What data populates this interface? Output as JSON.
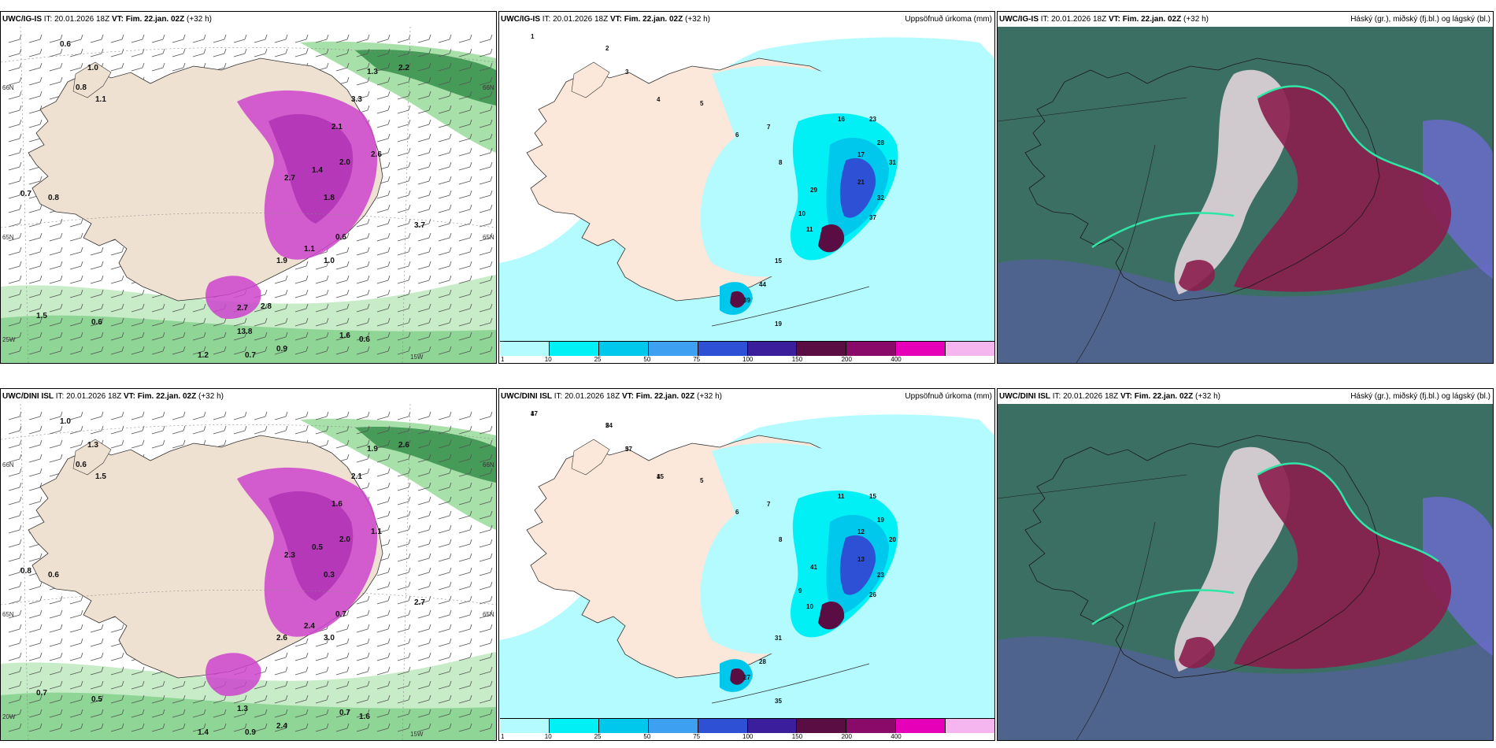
{
  "panels": [
    {
      "model": "UWC/IG-IS",
      "it_label": "IT:",
      "it_value": "20.01.2026 18Z",
      "vt_label": "VT:",
      "vt_value": "Fim. 22.jan. 02Z",
      "lead": "(+32 h)",
      "right_title": "",
      "kind": "wind",
      "labels": [
        "0.6",
        "0.7",
        "0.8",
        "1.0",
        "0.8",
        "1.1",
        "2.2",
        "1.3",
        "2.0",
        "3.3",
        "2.1",
        "2.7",
        "1.4",
        "1.8",
        "2.6",
        "3.7",
        "0.6",
        "1.9",
        "1.0",
        "1.1",
        "0.6",
        "1.5",
        "0.7",
        "0.9",
        "1.2",
        "1.6",
        "13.8",
        "0.6",
        "2.7",
        "2.8"
      ],
      "axis": [
        "66N",
        "65N",
        "25W",
        "15W",
        "66N",
        "65N"
      ]
    },
    {
      "model": "UWC/IG-IS",
      "it_label": "IT:",
      "it_value": "20.01.2026 18Z",
      "vt_label": "VT:",
      "vt_value": "Fim. 22.jan. 02Z",
      "lead": "(+32 h)",
      "right_title": "Uppsöfnuð úrkoma (mm)",
      "kind": "precip",
      "labels": [
        "1",
        "2",
        "3",
        "4",
        "5",
        "6",
        "7",
        "8",
        "10",
        "11",
        "16",
        "17",
        "21",
        "23",
        "28",
        "31",
        "32",
        "37",
        "39",
        "44",
        "15",
        "19",
        "29"
      ]
    },
    {
      "model": "UWC/IG-IS",
      "it_label": "IT:",
      "it_value": "20.01.2026 18Z",
      "vt_label": "VT:",
      "vt_value": "Fim. 22.jan. 02Z",
      "lead": "(+32 h)",
      "right_title": "Háský (gr.), miðský (fj.bl.) og lágský (bl.)",
      "kind": "cloud"
    },
    {
      "model": "UWC/DINI ISL",
      "it_label": "IT:",
      "it_value": "20.01.2026 18Z",
      "vt_label": "VT:",
      "vt_value": "Fim. 22.jan. 02Z",
      "lead": "(+32 h)",
      "right_title": "",
      "kind": "wind",
      "labels": [
        "1.0",
        "0.8",
        "0.6",
        "1.3",
        "0.6",
        "1.5",
        "2.6",
        "1.9",
        "2.0",
        "2.1",
        "1.6",
        "2.3",
        "0.5",
        "0.3",
        "1.1",
        "2.7",
        "0.7",
        "2.6",
        "3.0",
        "2.4",
        "0.5",
        "0.7",
        "0.9",
        "2.4",
        "1.4",
        "0.7",
        "1.3",
        "1.6"
      ],
      "axis": [
        "66N",
        "65N",
        "20W",
        "15W",
        "66N",
        "65N"
      ]
    },
    {
      "model": "UWC/DINI ISL",
      "it_label": "IT:",
      "it_value": "20.01.2026 18Z",
      "vt_label": "VT:",
      "vt_value": "Fim. 22.jan. 02Z",
      "lead": "(+32 h)",
      "right_title": "Uppsöfnuð úrkoma (mm)",
      "kind": "precip",
      "labels": [
        "1",
        "2",
        "3",
        "4",
        "5",
        "6",
        "7",
        "8",
        "9",
        "10",
        "11",
        "12",
        "13",
        "15",
        "19",
        "20",
        "23",
        "26",
        "27",
        "28",
        "31",
        "35",
        "41",
        "47",
        "54",
        "57",
        "15"
      ]
    },
    {
      "model": "UWC/DINI ISL",
      "it_label": "IT:",
      "it_value": "20.01.2026 18Z",
      "vt_label": "VT:",
      "vt_value": "Fim. 22.jan. 02Z",
      "lead": "(+32 h)",
      "right_title": "Háský (gr.), miðský (fj.bl.) og lágský (bl.)",
      "kind": "cloud"
    }
  ],
  "colorbar": {
    "ticks": [
      "1",
      "10",
      "25",
      "50",
      "75",
      "100",
      "150",
      "200",
      "400"
    ],
    "colors": [
      "#b3fbff",
      "#00f0f5",
      "#00c7ec",
      "#3ea0f0",
      "#2d50d4",
      "#3b1e9c",
      "#5a0d42",
      "#8a0a6a",
      "#e600b8",
      "#f5b6f0"
    ]
  }
}
